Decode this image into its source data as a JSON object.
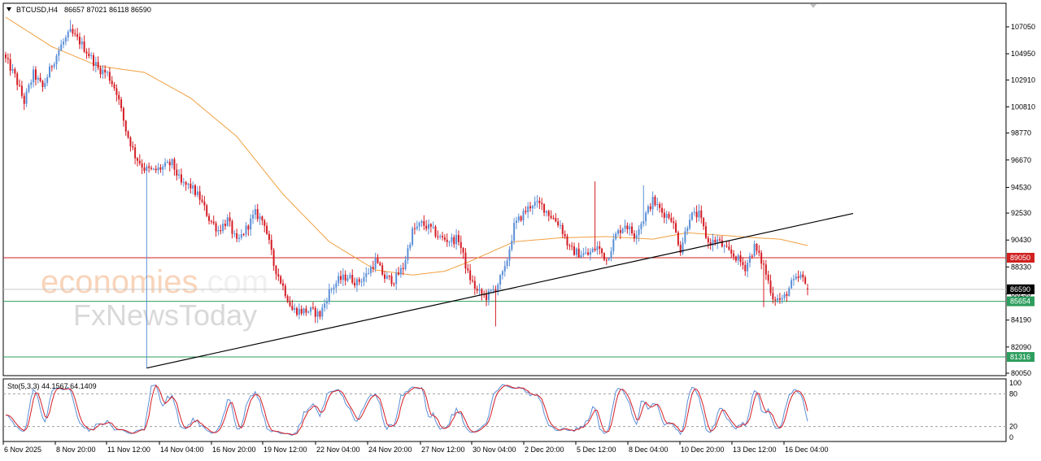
{
  "header": {
    "symbol": "BTCUSD,H4",
    "ohlc": "86657 87021 86118 86590"
  },
  "watermark": {
    "line1_brand": "economies",
    "line1_suffix": ".com",
    "line2": "FxNewsToday"
  },
  "colors": {
    "bull": "#5b8fd6",
    "bear": "#d41c24",
    "ma": "#f0a040",
    "trendline": "#000000",
    "resistance": "#d02020",
    "support": "#2e9e5e",
    "current": "#000000"
  },
  "chart_data": [
    {
      "type": "candlestick",
      "title": "",
      "y_ticks": [
        107050,
        104950,
        102910,
        100810,
        98770,
        96670,
        94530,
        92530,
        90430,
        88330,
        86230,
        84190,
        82090,
        80050
      ],
      "y_tick_labels": [
        "107050",
        "104950",
        "102910",
        "100810",
        "98770",
        "96670",
        "94530",
        "92530",
        "90430",
        "88330",
        "86230",
        "84190",
        "82090",
        "80050"
      ],
      "ylim": [
        79700,
        108700
      ],
      "x_tick_labels": [
        "6 Nov 2025",
        "8 Nov 20:00",
        "11 Nov 12:00",
        "14 Nov 04:00",
        "16 Nov 20:00",
        "19 Nov 12:00",
        "22 Nov 04:00",
        "24 Nov 20:00",
        "27 Nov 12:00",
        "30 Nov 04:00",
        "2 Dec 20:00",
        "5 Dec 12:00",
        "8 Dec 04:00",
        "10 Dec 20:00",
        "13 Dec 12:00",
        "16 Dec 04:00"
      ],
      "levels": {
        "resistance": {
          "value": 89050,
          "label": "89050"
        },
        "current": {
          "value": 86590,
          "label": "86590"
        },
        "support1": {
          "value": 85654,
          "label": "85654"
        },
        "support2": {
          "value": 81316,
          "label": "81316"
        }
      },
      "trendline": {
        "from": {
          "bar": 61,
          "value": 80450
        },
        "to": {
          "bar": 175,
          "value": 92500
        }
      },
      "close_path": [
        [
          0,
          104500
        ],
        [
          4,
          103200
        ],
        [
          8,
          101200
        ],
        [
          12,
          103400
        ],
        [
          16,
          102300
        ],
        [
          20,
          104100
        ],
        [
          24,
          105600
        ],
        [
          28,
          106600
        ],
        [
          32,
          105900
        ],
        [
          36,
          104900
        ],
        [
          40,
          103800
        ],
        [
          44,
          103400
        ],
        [
          48,
          102000
        ],
        [
          52,
          99000
        ],
        [
          56,
          97000
        ],
        [
          60,
          96000
        ],
        [
          64,
          95800
        ],
        [
          68,
          96100
        ],
        [
          72,
          96400
        ],
        [
          76,
          94800
        ],
        [
          80,
          94600
        ],
        [
          84,
          93700
        ],
        [
          88,
          92100
        ],
        [
          92,
          91200
        ],
        [
          96,
          92000
        ],
        [
          100,
          90200
        ],
        [
          104,
          91300
        ],
        [
          108,
          92500
        ],
        [
          112,
          91800
        ],
        [
          116,
          88500
        ],
        [
          120,
          86800
        ],
        [
          124,
          85000
        ],
        [
          128,
          84900
        ],
        [
          132,
          84900
        ],
        [
          136,
          84600
        ],
        [
          140,
          86400
        ],
        [
          144,
          87300
        ],
        [
          148,
          87600
        ],
        [
          152,
          87100
        ],
        [
          156,
          87700
        ],
        [
          160,
          88800
        ],
        [
          164,
          87500
        ],
        [
          168,
          87300
        ],
        [
          172,
          88300
        ],
        [
          176,
          91100
        ],
        [
          180,
          91700
        ],
        [
          184,
          91300
        ],
        [
          188,
          90600
        ],
        [
          192,
          90400
        ],
        [
          196,
          90500
        ],
        [
          200,
          87800
        ],
        [
          204,
          86400
        ],
        [
          208,
          86000
        ],
        [
          212,
          86700
        ],
        [
          216,
          88100
        ],
        [
          220,
          91500
        ],
        [
          224,
          92500
        ],
        [
          228,
          93300
        ],
        [
          232,
          93100
        ],
        [
          236,
          92300
        ],
        [
          240,
          91600
        ],
        [
          244,
          89700
        ],
        [
          248,
          89400
        ],
        [
          252,
          89300
        ],
        [
          256,
          89900
        ],
        [
          260,
          88900
        ],
        [
          264,
          90800
        ],
        [
          268,
          91700
        ],
        [
          272,
          90800
        ],
        [
          276,
          92100
        ],
        [
          280,
          93500
        ],
        [
          284,
          92600
        ],
        [
          288,
          92200
        ],
        [
          292,
          89700
        ],
        [
          296,
          92300
        ],
        [
          300,
          92400
        ],
        [
          304,
          90200
        ],
        [
          308,
          90400
        ],
        [
          312,
          89600
        ],
        [
          316,
          89100
        ],
        [
          320,
          88300
        ],
        [
          324,
          89900
        ],
        [
          328,
          88400
        ],
        [
          332,
          86000
        ],
        [
          336,
          85700
        ],
        [
          340,
          87000
        ],
        [
          344,
          87600
        ],
        [
          347,
          86590
        ]
      ],
      "ma_path": [
        [
          0,
          107800
        ],
        [
          20,
          105500
        ],
        [
          40,
          104000
        ],
        [
          60,
          103500
        ],
        [
          80,
          101500
        ],
        [
          100,
          98500
        ],
        [
          120,
          94000
        ],
        [
          140,
          90300
        ],
        [
          160,
          88100
        ],
        [
          176,
          87700
        ],
        [
          190,
          88000
        ],
        [
          200,
          88700
        ],
        [
          220,
          90300
        ],
        [
          240,
          90600
        ],
        [
          260,
          90700
        ],
        [
          280,
          90500
        ],
        [
          295,
          91000
        ],
        [
          310,
          90800
        ],
        [
          325,
          90600
        ],
        [
          335,
          90500
        ],
        [
          347,
          90000
        ]
      ]
    },
    {
      "type": "line",
      "title": "Sto(5,3,3)",
      "values_label": "44.1567 64.1409",
      "y_tick_labels": [
        "100",
        "80",
        "20",
        "0"
      ],
      "ylim": [
        0,
        100
      ],
      "levels": [
        80,
        20
      ],
      "series": [
        {
          "name": "",
          "role": "main"
        },
        {
          "name": "",
          "role": "signal"
        }
      ]
    }
  ]
}
